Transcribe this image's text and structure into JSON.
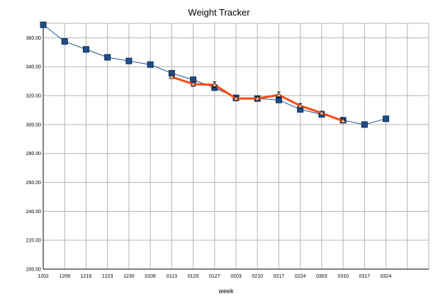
{
  "chart_data": {
    "type": "line",
    "title": "Weight Tracker",
    "xlabel": "week",
    "ylabel": "",
    "ylim": [
      200,
      370
    ],
    "yticks": [
      "200.00",
      "220.00",
      "240.00",
      "260.00",
      "280.00",
      "300.00",
      "320.00",
      "340.00",
      "360.00"
    ],
    "categories": [
      "1202",
      "1209",
      "1216",
      "1223",
      "1230",
      "0106",
      "0113",
      "0120",
      "0127",
      "0203",
      "0210",
      "0217",
      "0224",
      "0303",
      "0310",
      "0317",
      "0324",
      "",
      ""
    ],
    "grid": true,
    "legend": "none",
    "series": [
      {
        "color": "#1f4e8c",
        "marker": "square",
        "values": [
          369,
          357.5,
          352,
          346.5,
          344,
          341.5,
          335.5,
          331,
          325.5,
          318.5,
          318,
          317,
          310.5,
          307,
          303,
          300,
          304,
          null,
          null
        ]
      },
      {
        "color": "#ff4a12",
        "marker": "triangle",
        "values": [
          null,
          null,
          null,
          null,
          null,
          null,
          333,
          328,
          327.5,
          318,
          318,
          320.5,
          313,
          308,
          302.5,
          null,
          null,
          null,
          null
        ],
        "error": [
          null,
          null,
          null,
          null,
          null,
          null,
          1.2,
          1.5,
          2,
          1.5,
          1.2,
          2,
          1.5,
          1.2,
          1.2,
          null,
          null,
          null,
          null
        ]
      }
    ]
  }
}
